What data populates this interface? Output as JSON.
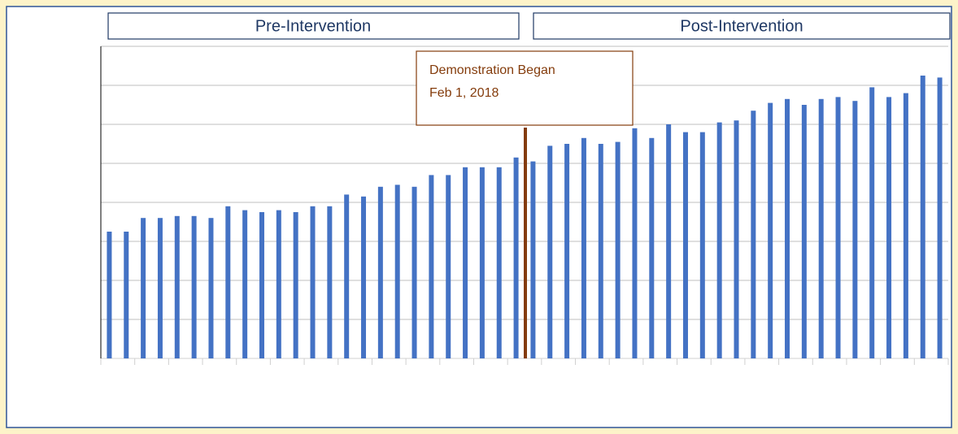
{
  "chart_data": {
    "type": "bar",
    "annotations": [
      "Pre-Intervention",
      "Post-Intervention",
      "Demonstration Began",
      "Feb 1, 2018"
    ],
    "categories": [
      null,
      null,
      null,
      null,
      null,
      null,
      null,
      null,
      null,
      null,
      null,
      null,
      null,
      null,
      null,
      null,
      null,
      null,
      null,
      null,
      null,
      null,
      null,
      null,
      null,
      null,
      null,
      null,
      null,
      null,
      null,
      null,
      null,
      null,
      null,
      null,
      null,
      null,
      null,
      null,
      null,
      null,
      null,
      null,
      null,
      null,
      null,
      null,
      null,
      null
    ],
    "values": [
      3.25,
      3.25,
      3.6,
      3.6,
      3.65,
      3.65,
      3.6,
      3.9,
      3.8,
      3.75,
      3.8,
      3.75,
      3.9,
      3.9,
      4.2,
      4.15,
      4.4,
      4.45,
      4.4,
      4.7,
      4.7,
      4.9,
      4.9,
      4.9,
      5.15,
      5.05,
      5.45,
      5.5,
      5.65,
      5.5,
      5.55,
      5.9,
      5.65,
      6.0,
      5.8,
      5.8,
      6.05,
      6.1,
      6.35,
      6.55,
      6.65,
      6.5,
      6.65,
      6.7,
      6.6,
      6.95,
      6.7,
      6.8,
      7.25,
      7.2
    ],
    "color": "#4472c4",
    "ylim": [
      0,
      8
    ],
    "yticks": [
      0,
      1,
      2,
      3,
      4,
      5,
      6,
      7,
      8
    ],
    "grid": true
  }
}
